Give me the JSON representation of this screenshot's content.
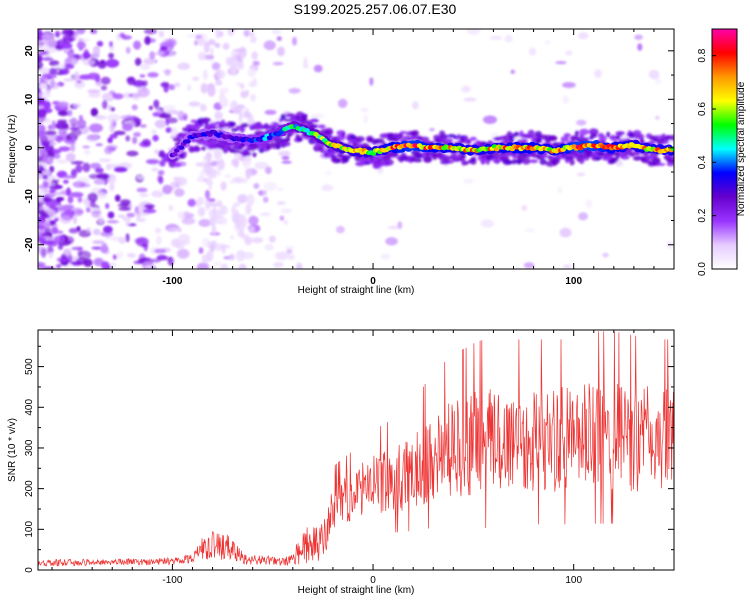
{
  "title": "S199.2025.257.06.07.E30",
  "chart_data": [
    {
      "type": "heatmap",
      "xlabel": "Height of straight line (km)",
      "ylabel": "Frequency (Hz)",
      "xlim": [
        -167,
        150
      ],
      "ylim": [
        -25,
        24.5
      ],
      "xticks": [
        -100,
        0,
        100
      ],
      "yticks": [
        -20,
        -10,
        0,
        10,
        20
      ],
      "xtick_labels": [
        "-100",
        "0",
        "100"
      ],
      "ytick_labels": [
        "-20",
        "-10",
        "0",
        "10",
        "20"
      ],
      "colorbar": {
        "label": "Normalized spectral amplitude",
        "range": [
          0,
          0.9
        ],
        "ticks": [
          0,
          0.2,
          0.4,
          0.6,
          0.8
        ],
        "tick_labels": [
          "0.0",
          "0.2",
          "0.4",
          "0.6",
          "0.8"
        ],
        "colors": [
          "#ffffff",
          "#e6ccff",
          "#9933ff",
          "#6600cc",
          "#0000ff",
          "#00ffff",
          "#00ff00",
          "#ffff00",
          "#ff9900",
          "#ff0000",
          "#ff00aa"
        ]
      },
      "ridge": {
        "x": [
          -100,
          -90,
          -80,
          -70,
          -60,
          -50,
          -40,
          -30,
          -20,
          -10,
          0,
          10,
          20,
          30,
          40,
          50,
          60,
          70,
          80,
          90,
          100,
          110,
          120,
          130,
          140,
          150
        ],
        "freq": [
          -1.5,
          2.5,
          3,
          2,
          1.5,
          2.5,
          4.5,
          3,
          0.5,
          -0.5,
          -1,
          0,
          0.5,
          0,
          0,
          -0.5,
          0,
          0,
          0,
          -0.5,
          0,
          0.5,
          0,
          0.5,
          -0.5,
          -0.5
        ],
        "amplitude": [
          0.3,
          0.35,
          0.35,
          0.35,
          0.4,
          0.45,
          0.55,
          0.6,
          0.65,
          0.7,
          0.7,
          0.8,
          0.85,
          0.8,
          0.75,
          0.75,
          0.75,
          0.8,
          0.8,
          0.75,
          0.85,
          0.85,
          0.8,
          0.75,
          0.75,
          0.75
        ]
      }
    },
    {
      "type": "line",
      "xlabel": "Height of straight line (km)",
      "ylabel": "SNR (10 * v/v)",
      "xlim": [
        -167,
        150
      ],
      "ylim": [
        0,
        590
      ],
      "xticks": [
        -100,
        0,
        100
      ],
      "yticks": [
        0,
        100,
        200,
        300,
        400,
        500
      ],
      "xtick_labels": [
        "-100",
        "0",
        "100"
      ],
      "ytick_labels": [
        "0",
        "100",
        "200",
        "300",
        "400",
        "500"
      ],
      "color": "#ee3333",
      "series": [
        {
          "name": "SNR",
          "x": [
            -167,
            -150,
            -130,
            -110,
            -100,
            -90,
            -85,
            -80,
            -75,
            -70,
            -65,
            -60,
            -55,
            -50,
            -45,
            -40,
            -35,
            -30,
            -25,
            -20,
            -15,
            -10,
            -5,
            0,
            10,
            20,
            30,
            40,
            50,
            60,
            70,
            80,
            90,
            100,
            110,
            120,
            130,
            140,
            150
          ],
          "center": [
            18,
            18,
            20,
            20,
            22,
            30,
            55,
            60,
            58,
            50,
            30,
            25,
            25,
            22,
            20,
            25,
            60,
            60,
            65,
            150,
            170,
            180,
            200,
            210,
            220,
            240,
            280,
            300,
            310,
            320,
            320,
            320,
            320,
            320,
            330,
            330,
            320,
            320,
            320
          ],
          "spread": [
            8,
            8,
            8,
            8,
            10,
            12,
            28,
            35,
            35,
            30,
            15,
            12,
            12,
            10,
            10,
            15,
            45,
            45,
            50,
            55,
            55,
            60,
            65,
            70,
            80,
            90,
            110,
            120,
            130,
            135,
            130,
            130,
            130,
            130,
            135,
            135,
            135,
            130,
            130
          ]
        }
      ]
    }
  ]
}
